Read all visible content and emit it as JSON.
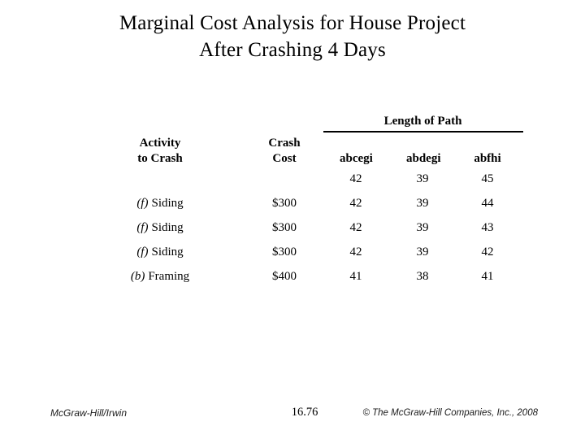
{
  "slide": {
    "title_line1": "Marginal Cost Analysis for House Project",
    "title_line2": "After Crashing 4 Days"
  },
  "table": {
    "group_header": "Length of Path",
    "columns": {
      "activity": [
        "Activity",
        "to Crash"
      ],
      "cost": [
        "Crash",
        "Cost"
      ],
      "paths": [
        "abcegi",
        "abdegi",
        "abfhi"
      ]
    },
    "initial_lengths": [
      "42",
      "39",
      "45"
    ],
    "rows": [
      {
        "prefix": "(f)",
        "name": "Siding",
        "cost": "$300",
        "lengths": [
          "42",
          "39",
          "44"
        ]
      },
      {
        "prefix": "(f)",
        "name": "Siding",
        "cost": "$300",
        "lengths": [
          "42",
          "39",
          "43"
        ]
      },
      {
        "prefix": "(f)",
        "name": "Siding",
        "cost": "$300",
        "lengths": [
          "42",
          "39",
          "42"
        ]
      },
      {
        "prefix": "(b)",
        "name": "Framing",
        "cost": "$400",
        "lengths": [
          "41",
          "38",
          "41"
        ]
      }
    ]
  },
  "footer": {
    "brand": "McGraw-Hill/Irwin",
    "page_number": "16.76",
    "copyright": "© The McGraw-Hill Companies, Inc., 2008"
  },
  "colors": {
    "text": "#000000",
    "background": "#ffffff"
  }
}
